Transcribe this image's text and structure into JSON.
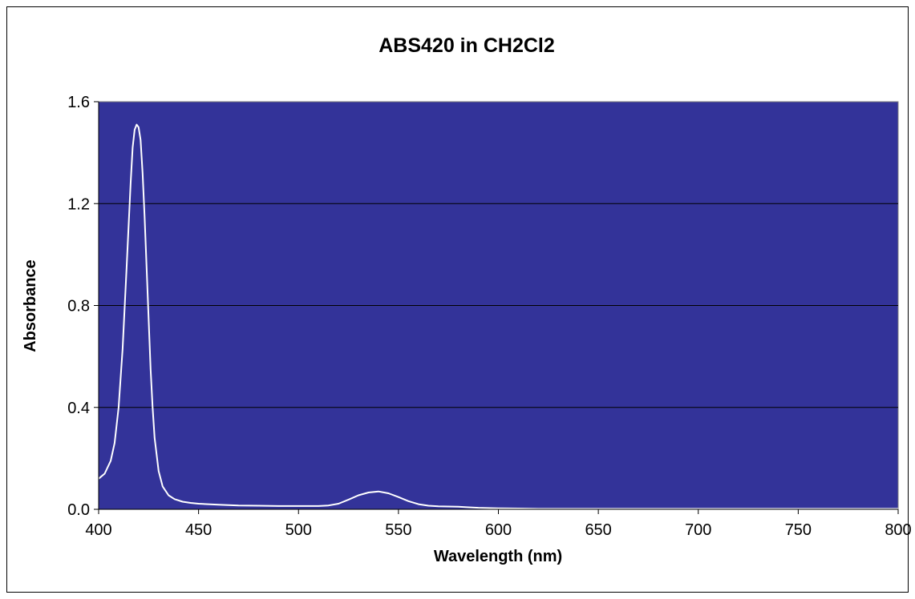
{
  "chart_data": {
    "type": "line",
    "title": "ABS420 in CH2Cl2",
    "xlabel": "Wavelength (nm)",
    "ylabel": "Absorbance",
    "xlim": [
      400,
      800
    ],
    "ylim": [
      0,
      1.6
    ],
    "x_ticks": [
      "400",
      "450",
      "500",
      "550",
      "600",
      "650",
      "700",
      "750",
      "800"
    ],
    "y_ticks": [
      "0.0",
      "0.4",
      "0.8",
      "1.2",
      "1.6"
    ],
    "grid": "horizontal",
    "legend": "none",
    "colors": {
      "plot_area": "#333399",
      "line": "#ffffff",
      "gridline": "#000000"
    },
    "series": [
      {
        "x": [
          400,
          403,
          406,
          408,
          410,
          412,
          414,
          416,
          417,
          418,
          419,
          420,
          421,
          422,
          423,
          424,
          425,
          426,
          427,
          428,
          430,
          432,
          435,
          438,
          442,
          446,
          450,
          460,
          470,
          480,
          490,
          500,
          510,
          515,
          520,
          525,
          530,
          535,
          540,
          545,
          550,
          555,
          560,
          565,
          570,
          575,
          580,
          585,
          590,
          600,
          610,
          620,
          650,
          700,
          750,
          800
        ],
        "y": [
          0.12,
          0.14,
          0.19,
          0.26,
          0.4,
          0.63,
          0.95,
          1.28,
          1.42,
          1.49,
          1.51,
          1.5,
          1.45,
          1.32,
          1.15,
          0.95,
          0.75,
          0.55,
          0.4,
          0.28,
          0.15,
          0.09,
          0.055,
          0.04,
          0.03,
          0.025,
          0.022,
          0.018,
          0.015,
          0.014,
          0.013,
          0.013,
          0.013,
          0.015,
          0.022,
          0.038,
          0.055,
          0.066,
          0.07,
          0.063,
          0.048,
          0.032,
          0.02,
          0.014,
          0.012,
          0.011,
          0.01,
          0.008,
          0.006,
          0.004,
          0.003,
          0.002,
          0.002,
          0.002,
          0.002,
          0.002
        ]
      }
    ]
  }
}
